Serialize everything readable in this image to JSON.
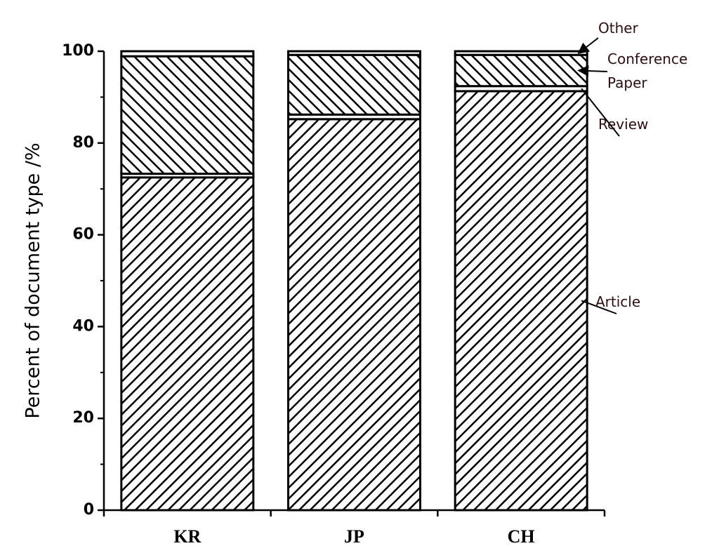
{
  "chart_data": {
    "type": "stacked_bar",
    "y_label": "Percent of document type /%",
    "categories": [
      "KR",
      "JP",
      "CH"
    ],
    "series": [
      {
        "name": "Article",
        "color": "#000000",
        "hatch": "/",
        "values": [
          72.5,
          85.2,
          91.3
        ]
      },
      {
        "name": "Review",
        "color": "#000000",
        "hatch": "none",
        "values": [
          0.8,
          1.0,
          1.1
        ]
      },
      {
        "name": "Conference Paper",
        "color": "#000000",
        "hatch": "\\",
        "values": [
          25.6,
          13.0,
          6.8
        ]
      },
      {
        "name": "Other",
        "color": "#000000",
        "hatch": "none",
        "values": [
          1.1,
          0.8,
          0.8
        ]
      }
    ],
    "ylim": [
      0,
      100
    ],
    "yticks": [
      0,
      20,
      40,
      60,
      80,
      100
    ],
    "grid": false,
    "legend": "right"
  }
}
